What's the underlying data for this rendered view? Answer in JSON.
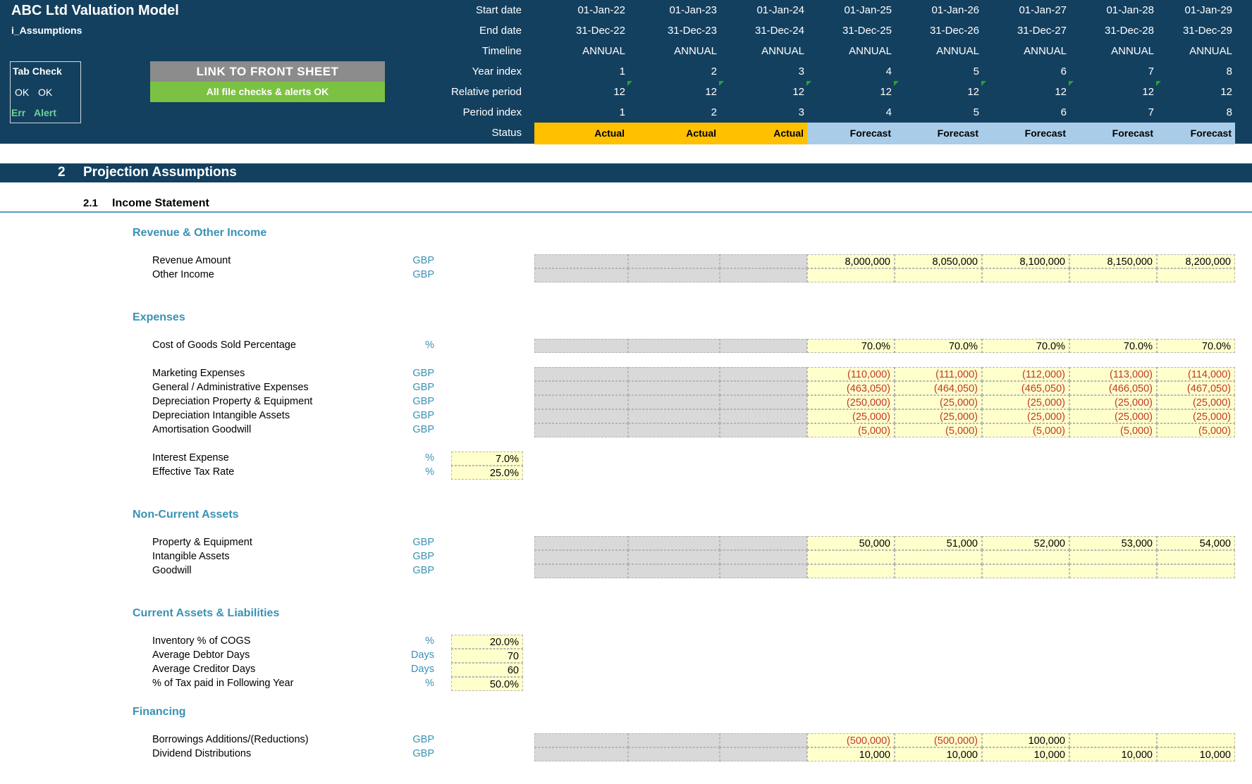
{
  "header": {
    "title": "ABC Ltd Valuation Model",
    "sheet": "i_Assumptions",
    "tab_check": {
      "title": "Tab Check",
      "ok1": "OK",
      "ok2": "OK",
      "err": "Err",
      "alert": "Alert"
    },
    "link_button": "LINK TO FRONT SHEET",
    "checks_ok": "All file checks & alerts OK",
    "labels": {
      "start": "Start date",
      "end": "End date",
      "timeline": "Timeline",
      "year_index": "Year index",
      "relative_period": "Relative period",
      "period_index": "Period index",
      "status": "Status"
    },
    "start_dates": [
      "01-Jan-22",
      "01-Jan-23",
      "01-Jan-24",
      "01-Jan-25",
      "01-Jan-26",
      "01-Jan-27",
      "01-Jan-28",
      "01-Jan-29"
    ],
    "end_dates": [
      "31-Dec-22",
      "31-Dec-23",
      "31-Dec-24",
      "31-Dec-25",
      "31-Dec-26",
      "31-Dec-27",
      "31-Dec-28",
      "31-Dec-29"
    ],
    "timeline": [
      "ANNUAL",
      "ANNUAL",
      "ANNUAL",
      "ANNUAL",
      "ANNUAL",
      "ANNUAL",
      "ANNUAL",
      "ANNUAL"
    ],
    "year_index": [
      "1",
      "2",
      "3",
      "4",
      "5",
      "6",
      "7",
      "8"
    ],
    "relative_period": [
      "12",
      "12",
      "12",
      "12",
      "12",
      "12",
      "12",
      "12"
    ],
    "period_index": [
      "1",
      "2",
      "3",
      "4",
      "5",
      "6",
      "7",
      "8"
    ],
    "status": [
      "Actual",
      "Actual",
      "Actual",
      "Forecast",
      "Forecast",
      "Forecast",
      "Forecast",
      "Forecast"
    ]
  },
  "section": {
    "number": "2",
    "title": "Projection Assumptions"
  },
  "subsection": {
    "number": "2.1",
    "title": "Income Statement"
  },
  "groups": {
    "revenue": "Revenue & Other Income",
    "expenses": "Expenses",
    "nca": "Non-Current Assets",
    "cal": "Current Assets & Liabilities",
    "financing": "Financing"
  },
  "rows": {
    "revenue_amount": {
      "label": "Revenue Amount",
      "unit": "GBP",
      "values": [
        "8,000,000",
        "8,050,000",
        "8,100,000",
        "8,150,000",
        "8,200,000"
      ]
    },
    "other_income": {
      "label": "Other Income",
      "unit": "GBP",
      "values": [
        "",
        "",
        "",
        "",
        ""
      ]
    },
    "cogs_pct": {
      "label": "Cost of Goods Sold Percentage",
      "unit": "%",
      "values": [
        "70.0%",
        "70.0%",
        "70.0%",
        "70.0%",
        "70.0%"
      ]
    },
    "marketing": {
      "label": "Marketing Expenses",
      "unit": "GBP",
      "values": [
        "(110,000)",
        "(111,000)",
        "(112,000)",
        "(113,000)",
        "(114,000)"
      ]
    },
    "gen_admin": {
      "label": "General / Administrative Expenses",
      "unit": "GBP",
      "values": [
        "(463,050)",
        "(464,050)",
        "(465,050)",
        "(466,050)",
        "(467,050)"
      ]
    },
    "dep_ppe": {
      "label": "Depreciation Property & Equipment",
      "unit": "GBP",
      "values": [
        "(250,000)",
        "(25,000)",
        "(25,000)",
        "(25,000)",
        "(25,000)"
      ]
    },
    "dep_intang": {
      "label": "Depreciation Intangible Assets",
      "unit": "GBP",
      "values": [
        "(25,000)",
        "(25,000)",
        "(25,000)",
        "(25,000)",
        "(25,000)"
      ]
    },
    "amort_gw": {
      "label": "Amortisation Goodwill",
      "unit": "GBP",
      "values": [
        "(5,000)",
        "(5,000)",
        "(5,000)",
        "(5,000)",
        "(5,000)"
      ]
    },
    "interest": {
      "label": "Interest Expense",
      "unit": "%",
      "value": "7.0%"
    },
    "tax_rate": {
      "label": "Effective Tax Rate",
      "unit": "%",
      "value": "25.0%"
    },
    "ppe": {
      "label": "Property & Equipment",
      "unit": "GBP",
      "values": [
        "50,000",
        "51,000",
        "52,000",
        "53,000",
        "54,000"
      ]
    },
    "intangibles": {
      "label": "Intangible Assets",
      "unit": "GBP",
      "values": [
        "",
        "",
        "",
        "",
        ""
      ]
    },
    "goodwill": {
      "label": "Goodwill",
      "unit": "GBP",
      "values": [
        "",
        "",
        "",
        "",
        ""
      ]
    },
    "inventory": {
      "label": "Inventory % of COGS",
      "unit": "%",
      "value": "20.0%"
    },
    "debtor_days": {
      "label": "Average Debtor Days",
      "unit": "Days",
      "value": "70"
    },
    "creditor_days": {
      "label": "Average Creditor Days",
      "unit": "Days",
      "value": "60"
    },
    "tax_following": {
      "label": "% of Tax paid in Following Year",
      "unit": "%",
      "value": "50.0%"
    },
    "borrowings": {
      "label": "Borrowings Additions/(Reductions)",
      "unit": "GBP",
      "values": [
        "(500,000)",
        "(500,000)",
        "100,000",
        "",
        ""
      ]
    },
    "dividends": {
      "label": "Dividend Distributions",
      "unit": "GBP",
      "values": [
        "10,000",
        "10,000",
        "10,000",
        "10,000",
        "10,000"
      ]
    }
  },
  "colors": {
    "header_bg": "#14405f",
    "actual": "#ffc000",
    "forecast": "#a9cde9",
    "input": "#ffffcc",
    "negative": "#c0392b",
    "accent": "#3a92b4"
  }
}
